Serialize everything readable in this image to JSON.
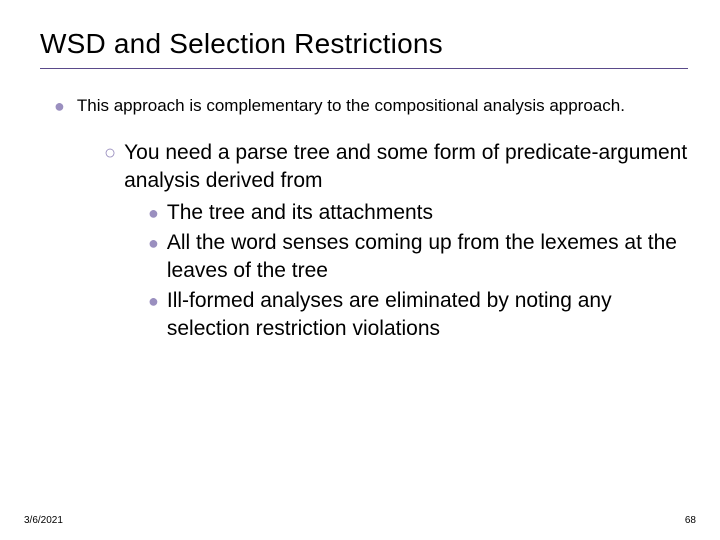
{
  "title": "WSD and Selection Restrictions",
  "level1_text": "This approach is complementary to the compositional analysis approach.",
  "level2_text": "You need a parse tree and some form of predicate-argument  analysis derived from",
  "level3_items": [
    "The tree and its attachments",
    "All the word senses coming up from the lexemes at the leaves    of the tree",
    "Ill-formed analyses are eliminated by noting any selection restriction violations"
  ],
  "footer_date": "3/6/2021",
  "footer_page": "68",
  "colors": {
    "bullet": "#9a8fbf",
    "underline": "#5a4a8a",
    "text": "#000000",
    "background": "#ffffff"
  },
  "typography": {
    "title_fontsize": 28,
    "level1_fontsize": 17,
    "level2_fontsize": 21,
    "level3_fontsize": 21,
    "footer_fontsize": 10
  }
}
